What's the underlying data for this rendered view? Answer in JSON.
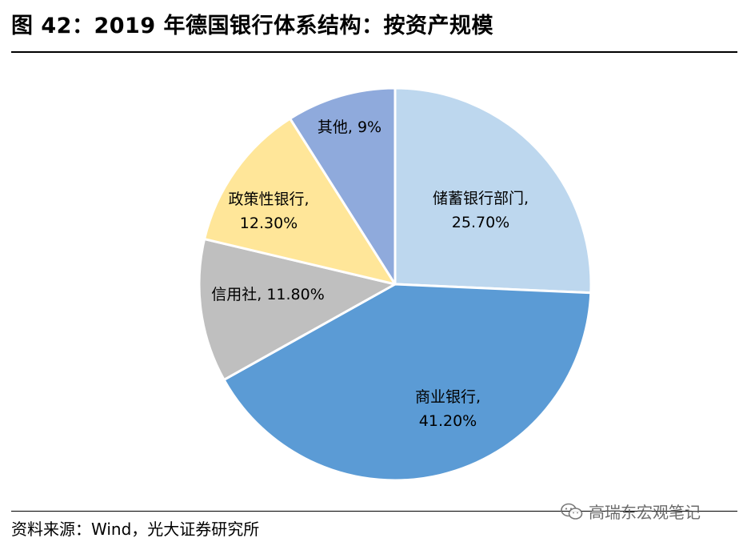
{
  "title": "图 42：2019 年德国银行体系结构：按资产规模",
  "source": "资料来源：Wind，光大证券研究所",
  "watermark": {
    "text": "高瑞东宏观笔记",
    "icon": "wechat-icon"
  },
  "chart_data": {
    "type": "pie",
    "title": "图 42：2019 年德国银行体系结构：按资产规模",
    "slices": [
      {
        "name": "储蓄银行部门",
        "value": 25.7,
        "color": "#BDD7EE",
        "label_lines": [
          "储蓄银行部门,",
          "25.70%"
        ]
      },
      {
        "name": "商业银行",
        "value": 41.2,
        "color": "#5B9BD5",
        "label_lines": [
          "商业银行,",
          "41.20%"
        ]
      },
      {
        "name": "信用社",
        "value": 11.8,
        "color": "#BFBFBF",
        "label_lines": [
          "信用社, 11.80%"
        ]
      },
      {
        "name": "政策性银行",
        "value": 12.3,
        "color": "#FFE699",
        "label_lines": [
          "政策性银行,",
          "12.30%"
        ]
      },
      {
        "name": "其他",
        "value": 9,
        "color": "#8FAADC",
        "label_lines": [
          "其他, 9%"
        ]
      }
    ],
    "start": "12 o'clock",
    "direction": "clockwise",
    "legend": "none"
  }
}
